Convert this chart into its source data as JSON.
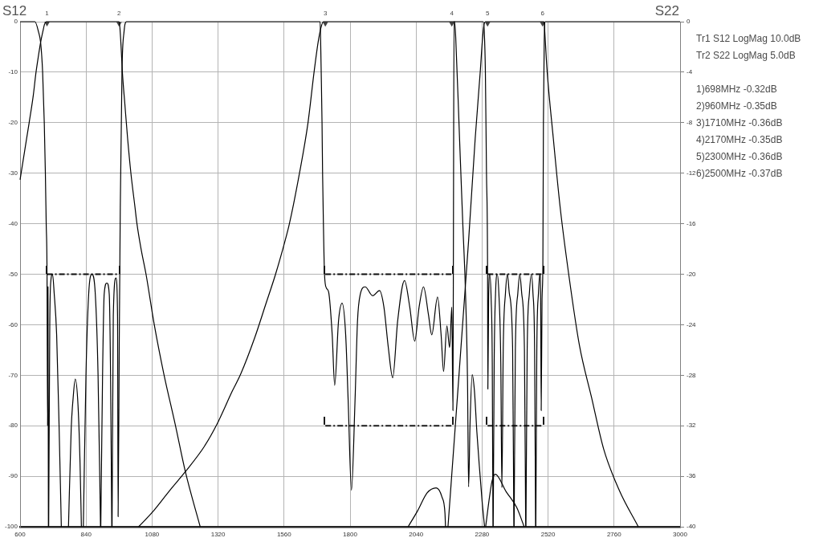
{
  "chart_data": {
    "type": "line",
    "ylabel": "S12",
    "y2label": "S22",
    "xlim": [
      600,
      3000
    ],
    "xticks": [
      600,
      840,
      1080,
      1320,
      1560,
      1800,
      2040,
      2280,
      2520,
      2760,
      3000
    ],
    "ylim": [
      -100,
      0
    ],
    "yticks": [
      -100,
      -90,
      -80,
      -70,
      -60,
      -50,
      -40,
      -30,
      -20,
      -10,
      0
    ],
    "y2lim": [
      -40,
      0
    ],
    "y2ticks": [
      -40,
      -36,
      -32,
      -28,
      -24,
      -20,
      -16,
      -12,
      -8,
      -4,
      0
    ],
    "grid": true,
    "marker": "none",
    "annotations": [
      "Tr1 S12 LogMag 10.0dB",
      "Tr2 S22 LogMag 5.0dB",
      "1)698MHz -0.32dB",
      "2)960MHz -0.35dB",
      "3)1710MHz -0.36dB",
      "4)2170MHz -0.35dB",
      "5)2300MHz -0.36dB",
      "6)2500MHz -0.37dB"
    ],
    "series": [
      {
        "color": "#000000",
        "x": [
          600,
          616,
          633,
          648,
          658,
          667,
          675,
          683,
          689,
          695,
          960,
          963,
          967,
          972,
          981,
          991,
          1003,
          1018,
          1025,
          1040,
          1058,
          1088,
          1123,
          1164,
          1201,
          1255
        ],
        "values": [
          -31.3,
          -25.8,
          -20,
          -14.6,
          -10,
          -6.7,
          -4,
          -1.9,
          -0.5,
          0,
          0,
          -1.2,
          -4.6,
          -10,
          -16.3,
          -23.1,
          -30,
          -36.8,
          -40,
          -45,
          -50,
          -60,
          -69.8,
          -79.7,
          -89.1,
          -100
        ]
      },
      {
        "color": "#000000",
        "x": [
          1031,
          1083,
          1143,
          1201,
          1270,
          1316,
          1372,
          1402,
          1453,
          1493,
          1529,
          1564,
          1579,
          1616,
          1647,
          1669,
          1684,
          1694,
          1703,
          2180,
          2184,
          2198,
          2210,
          2219,
          2227,
          2231,
          2236,
          2244,
          2252,
          2261,
          2270,
          2280,
          2289,
          2291,
          2293,
          2307,
          2316,
          2328,
          2368,
          2406,
          2433
        ],
        "values": [
          -100,
          -97,
          -92.9,
          -89.1,
          -84.1,
          -79.7,
          -73.1,
          -69.8,
          -62.6,
          -56,
          -50,
          -43.3,
          -40.1,
          -30,
          -20,
          -10,
          -4,
          -1.2,
          0,
          0,
          -3,
          -23.1,
          -40.2,
          -52.5,
          -71,
          -92.1,
          -80,
          -69.9,
          -73,
          -81.2,
          -88,
          -94.9,
          -100,
          null,
          -100,
          -94.1,
          -91,
          -89.6,
          -93.1,
          -96.2,
          -100
        ]
      },
      {
        "color": "#000000",
        "x": [
          2011,
          2046,
          2080,
          2113,
          2134,
          2145,
          2147,
          2150,
          2156,
          2190,
          2219,
          2231,
          2255,
          2274,
          2280,
          2286,
          2292,
          2505,
          2509,
          2516,
          2539,
          2564,
          2596,
          2634,
          2678,
          2722,
          2779,
          2848
        ],
        "values": [
          -100,
          -96.8,
          -93.3,
          -92.3,
          -94.1,
          -97.3,
          -100,
          null,
          -100,
          -74.5,
          -52.5,
          -43.3,
          -23.1,
          -9.4,
          -4.5,
          -1,
          0,
          0,
          -3,
          -9.4,
          -23.1,
          -36.8,
          -50.4,
          -64.1,
          -74.4,
          -84.6,
          -92.8,
          -100
        ]
      },
      {
        "color": "#000000",
        "axis": "y2",
        "x": [
          600,
          654,
          667,
          675,
          682,
          688,
          692,
          695,
          698,
          700,
          701.5,
          703,
          703.5,
          704,
          708,
          712,
          718,
          724,
          733,
          742,
          748,
          750,
          763,
          776,
          786,
          793,
          800.6,
          810.5,
          818,
          823,
          826.5,
          830,
          839.7,
          849.4,
          861,
          873.6,
          883.5,
          892.5,
          893,
          893.5,
          900,
          905.8,
          915.6,
          924.3,
          929,
          933.5,
          934,
          934.5,
          939,
          948.6,
          954.5,
          956.5,
          960.6,
          964.4,
          970.7,
          978,
          987,
          1688,
          1691,
          1693,
          1695,
          1698,
          1700,
          1703,
          1707,
          1714,
          1722,
          1735,
          1744,
          1758,
          1771,
          1784,
          1793,
          1805,
          1818,
          1827,
          1837,
          1855,
          1882,
          1907,
          1923,
          1939,
          1955,
          1973,
          1998,
          2017,
          2035,
          2051,
          2067,
          2085,
          2097,
          2118,
          2131,
          2140,
          2152,
          2162,
          2170,
          2174,
          2176,
          2178,
          2284,
          2288,
          2292,
          2296,
          2300,
          2301,
          2304,
          2308,
          2313,
          2317,
          2319.5,
          2320,
          2320.5,
          2324,
          2329,
          2335,
          2341,
          2348,
          2352,
          2357,
          2365,
          2372,
          2379,
          2391,
          2395.5,
          2396,
          2396.5,
          2401,
          2410,
          2417,
          2424,
          2434,
          2438.5,
          2439,
          2439.5,
          2444,
          2452,
          2459,
          2465,
          2471,
          2474.5,
          2475,
          2475.5,
          2479,
          2485,
          2490,
          2493,
          2495,
          2498,
          2501,
          2503,
          2506,
          2510,
          3000
        ],
        "values": [
          0,
          0,
          -0.8,
          -1.7,
          -4,
          -8,
          -12,
          -16,
          -20,
          -32,
          -21,
          -40,
          null,
          -40,
          -24,
          -20.5,
          -20,
          -21.5,
          -24.8,
          -32.2,
          -38,
          -40,
          null,
          -40,
          -32.2,
          -29.8,
          -28.3,
          -30.3,
          -34.9,
          -40,
          null,
          -40,
          -27.9,
          -21.6,
          -20,
          -21.6,
          -27.9,
          -40,
          null,
          -40,
          -27.9,
          -21.6,
          -20.7,
          -21.6,
          -27.9,
          -40,
          null,
          -40,
          -23.3,
          -20.3,
          -23.3,
          -39.2,
          -25.6,
          -14.7,
          -3.8,
          -0.8,
          0,
          0,
          0,
          -1.6,
          -4,
          -8,
          -12,
          -16,
          -20,
          -21.1,
          -21.4,
          -24.8,
          -28.8,
          -23.7,
          -22.3,
          -24.8,
          -30,
          -37.1,
          -30,
          -23.7,
          -21.6,
          -21,
          -21.7,
          -21.3,
          -22.6,
          -25.8,
          -28.2,
          -23.7,
          -20.5,
          -22.6,
          -25.3,
          -22.6,
          -21,
          -23.2,
          -24.8,
          -21.8,
          -24.8,
          -27.7,
          -24.1,
          -25.8,
          -22.6,
          -30.8,
          -15,
          0,
          0,
          -0.8,
          -4,
          -12,
          -19.9,
          -29.1,
          -21.5,
          -20,
          -22,
          -27,
          -40,
          null,
          -40,
          -27,
          -21.5,
          -20,
          -21.5,
          -27,
          -36.9,
          -25.8,
          -21.5,
          -20,
          -21.5,
          -25.8,
          -40,
          null,
          -40,
          -26,
          -21.5,
          -20,
          -21.5,
          -26,
          -40,
          null,
          -40,
          -26,
          -21.5,
          -20,
          -21.5,
          -26,
          -40,
          null,
          -40,
          -26,
          -21.5,
          -20,
          -22,
          -30.8,
          -22,
          -19.4,
          -8,
          -1.5,
          0,
          0
        ]
      },
      {
        "color": "#0d0d0d",
        "axis": "y2",
        "line_style": "dashed",
        "x": [
          698,
          960,
          1335,
          1710,
          2170,
          2235,
          2300,
          2500
        ],
        "values": [
          -20,
          -20,
          null,
          -20,
          -20,
          null,
          -20,
          -20
        ]
      },
      {
        "color": "#1a1a1a",
        "line_style": "dashed",
        "x": [
          1710,
          2170,
          2235,
          2300,
          2500
        ],
        "values": [
          -80,
          -80,
          null,
          -80,
          -80
        ]
      },
      {
        "type": "scatter",
        "name": "1",
        "color": "#444444",
        "marker": "triangle",
        "x": [
          698
        ],
        "values": [
          -0.32
        ]
      },
      {
        "type": "scatter",
        "name": "2",
        "color": "#444444",
        "marker": "triangle",
        "x": [
          960
        ],
        "values": [
          -0.35
        ]
      },
      {
        "type": "scatter",
        "name": "3",
        "color": "#444444",
        "marker": "triangle",
        "x": [
          1710
        ],
        "values": [
          -0.36
        ]
      },
      {
        "type": "scatter",
        "name": "4",
        "color": "#444444",
        "marker": "triangle",
        "x": [
          2170
        ],
        "values": [
          -0.35
        ]
      },
      {
        "type": "scatter",
        "name": "5",
        "color": "#444444",
        "marker": "triangle",
        "x": [
          2300
        ],
        "values": [
          -0.36
        ]
      },
      {
        "type": "scatter",
        "name": "6",
        "color": "#444444",
        "marker": "triangle",
        "x": [
          2500
        ],
        "values": [
          -0.37
        ]
      }
    ]
  }
}
